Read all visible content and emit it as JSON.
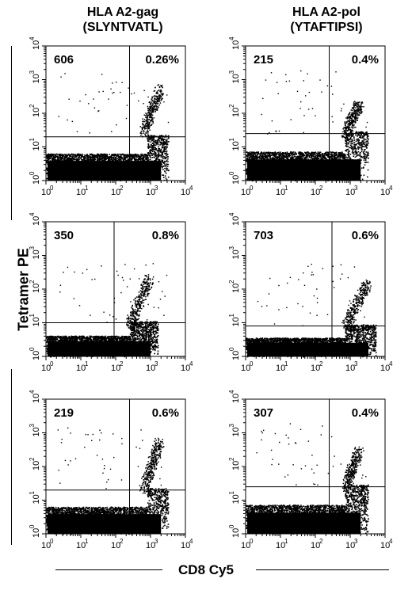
{
  "column_titles": [
    {
      "line1": "HLA A2-gag",
      "line2": "(SLYNTVATL)"
    },
    {
      "line1": "HLA A2-pol",
      "line2": "(YTAFTIPSI)"
    }
  ],
  "y_label": "Tetramer PE",
  "x_label": "CD8 Cy5",
  "chart_data": [
    {
      "type": "scatter",
      "row": 1,
      "col": 1,
      "count": "606",
      "percent": "0.26%",
      "xlim": [
        1,
        10000
      ],
      "ylim": [
        1,
        10000
      ],
      "gate": {
        "x": 250,
        "y": 20
      },
      "pos_cluster": {
        "x": [
          600,
          1800
        ],
        "y": [
          25,
          500
        ]
      },
      "neg_shoulder": 800
    },
    {
      "type": "scatter",
      "row": 1,
      "col": 2,
      "count": "215",
      "percent": "0.4%",
      "xlim": [
        1,
        10000
      ],
      "ylim": [
        1,
        10000
      ],
      "gate": {
        "x": 250,
        "y": 25
      },
      "pos_cluster": {
        "x": [
          700,
          1800
        ],
        "y": [
          25,
          200
        ]
      },
      "neg_shoulder": 700
    },
    {
      "type": "scatter",
      "row": 2,
      "col": 1,
      "count": "350",
      "percent": "0.8%",
      "xlim": [
        1,
        10000
      ],
      "ylim": [
        1,
        10000
      ],
      "gate": {
        "x": 90,
        "y": 10
      },
      "pos_cluster": {
        "x": [
          250,
          900
        ],
        "y": [
          10,
          200
        ]
      },
      "neg_shoulder": 250
    },
    {
      "type": "scatter",
      "row": 2,
      "col": 2,
      "count": "703",
      "percent": "0.6%",
      "xlim": [
        1,
        10000
      ],
      "ylim": [
        1,
        10000
      ],
      "gate": {
        "x": 300,
        "y": 8
      },
      "pos_cluster": {
        "x": [
          700,
          3000
        ],
        "y": [
          8,
          150
        ]
      },
      "neg_shoulder": 700
    },
    {
      "type": "scatter",
      "row": 3,
      "col": 1,
      "count": "219",
      "percent": "0.6%",
      "xlim": [
        1,
        10000
      ],
      "ylim": [
        1,
        10000
      ],
      "gate": {
        "x": 250,
        "y": 20
      },
      "pos_cluster": {
        "x": [
          600,
          1800
        ],
        "y": [
          20,
          600
        ]
      },
      "neg_shoulder": 800
    },
    {
      "type": "scatter",
      "row": 3,
      "col": 2,
      "count": "307",
      "percent": "0.4%",
      "xlim": [
        1,
        10000
      ],
      "ylim": [
        1,
        10000
      ],
      "gate": {
        "x": 250,
        "y": 25
      },
      "pos_cluster": {
        "x": [
          700,
          1800
        ],
        "y": [
          25,
          300
        ]
      },
      "neg_shoulder": 700
    }
  ]
}
